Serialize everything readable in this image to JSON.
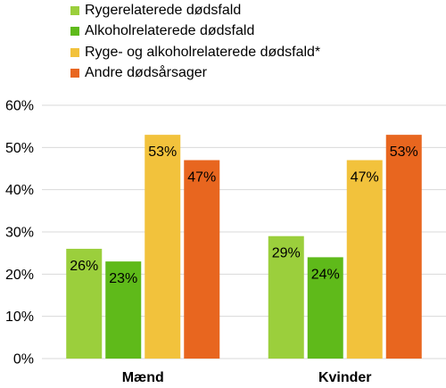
{
  "chart_data": {
    "type": "bar",
    "categories": [
      "Mænd",
      "Kvinder"
    ],
    "series": [
      {
        "name": "Rygerelaterede dødsfald",
        "values": [
          26,
          29
        ],
        "labels": [
          "26%",
          "29%"
        ],
        "color": "#9bcf3c"
      },
      {
        "name": "Alkoholrelaterede dødsfald",
        "values": [
          23,
          24
        ],
        "labels": [
          "23%",
          "24%"
        ],
        "color": "#5fba1a"
      },
      {
        "name": "Ryge- og alkoholrelaterede dødsfald*",
        "values": [
          53,
          47
        ],
        "labels": [
          "53%",
          "47%"
        ],
        "color": "#f2c23c"
      },
      {
        "name": "Andre dødsårsager",
        "values": [
          47,
          53
        ],
        "labels": [
          "47%",
          "53%"
        ],
        "color": "#e8661f"
      }
    ],
    "ylim": [
      0,
      60
    ],
    "yticks": [
      0,
      10,
      20,
      30,
      40,
      50,
      60
    ],
    "ytick_labels": [
      "0%",
      "10%",
      "20%",
      "30%",
      "40%",
      "50%",
      "60%"
    ],
    "grid": true,
    "gridline_color": "#d9d9d9",
    "legend_position": "top-left"
  }
}
